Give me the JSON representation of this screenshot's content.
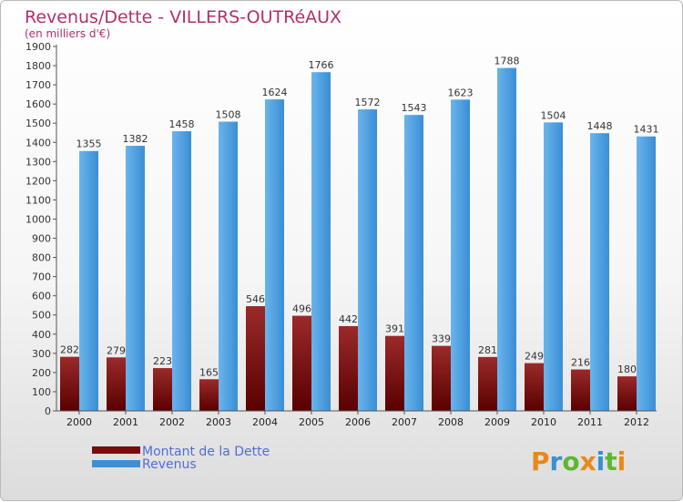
{
  "chart_data": {
    "type": "bar",
    "title": "Revenus/Dette - VILLERS-OUTRéAUX",
    "subtitle": "(en milliers d'€)",
    "categories": [
      "2000",
      "2001",
      "2002",
      "2003",
      "2004",
      "2005",
      "2006",
      "2007",
      "2008",
      "2009",
      "2010",
      "2011",
      "2012"
    ],
    "series": [
      {
        "name": "Montant de la Dette",
        "color": "#7a0c0c",
        "values": [
          282,
          279,
          223,
          165,
          546,
          496,
          442,
          391,
          339,
          281,
          249,
          216,
          180
        ]
      },
      {
        "name": "Revenus",
        "color": "#3d8fd6",
        "values": [
          1355,
          1382,
          1458,
          1508,
          1624,
          1766,
          1572,
          1543,
          1623,
          1788,
          1504,
          1448,
          1431
        ]
      }
    ],
    "ylim": [
      0,
      1900
    ],
    "ytick_step": 100,
    "grid": false,
    "legend_position": "bottom-left"
  },
  "logo": {
    "text": "Proxiti",
    "colors": [
      "#e8891a",
      "#3a8fd0",
      "#5cb82e",
      "#e8891a",
      "#3a8fd0",
      "#5cb82e",
      "#e8891a"
    ]
  }
}
